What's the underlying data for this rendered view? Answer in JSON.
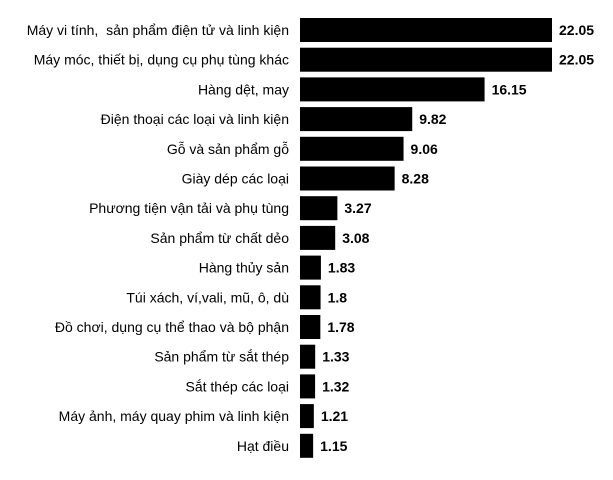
{
  "chart_data": {
    "type": "bar",
    "orientation": "horizontal",
    "categories": [
      "Máy vi tính,  sản phẩm điện tử và linh kiện",
      "Máy móc, thiết bị, dụng cụ phụ tùng khác",
      "Hàng dệt, may",
      "Điện thoại các loại và linh kiện",
      "Gỗ và sản phẩm gỗ",
      "Giày dép các loại",
      "Phương tiện vận tải và phụ tùng",
      "Sản phẩm từ chất dẻo",
      "Hàng thủy sản",
      "Túi xách, ví,vali, mũ, ô, dù",
      "Đồ chơi, dụng cụ thể thao và bộ phận",
      "Sản phẩm từ sắt thép",
      "Sắt thép các loại",
      "Máy ảnh, máy quay phim và linh kiện",
      "Hạt điều"
    ],
    "values": [
      22.05,
      22.05,
      16.15,
      9.82,
      9.06,
      8.28,
      3.27,
      3.08,
      1.83,
      1.8,
      1.78,
      1.33,
      1.32,
      1.21,
      1.15
    ],
    "value_labels": [
      "22.05",
      "22.05",
      "16.15",
      "9.82",
      "9.06",
      "8.28",
      "3.27",
      "3.08",
      "1.83",
      "1.8",
      "1.78",
      "1.33",
      "1.32",
      "1.21",
      "1.15"
    ],
    "xlim": [
      0,
      22.05
    ],
    "bar_color": "#000000",
    "grid": false,
    "legend": "none",
    "title": "",
    "xlabel": "",
    "ylabel": ""
  }
}
